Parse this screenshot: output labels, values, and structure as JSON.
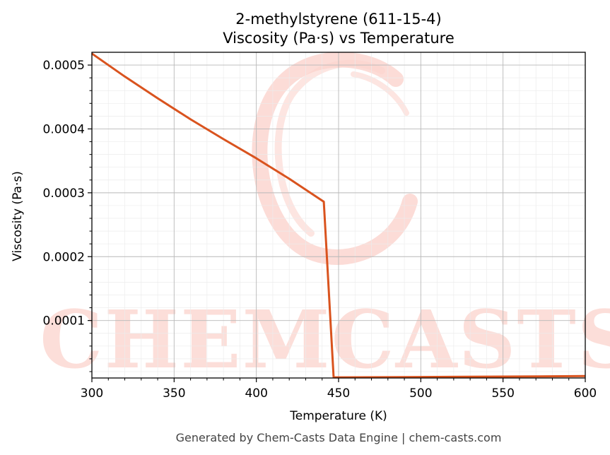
{
  "chart_data": {
    "type": "line",
    "title_line1": "2-methylstyrene (611-15-4)",
    "title_line2": "Viscosity (Pa·s) vs Temperature",
    "xlabel": "Temperature (K)",
    "ylabel": "Viscosity (Pa·s)",
    "xlim": [
      300,
      600
    ],
    "ylim": [
      1e-05,
      0.00052
    ],
    "x_ticks": [
      300,
      350,
      400,
      450,
      500,
      550,
      600
    ],
    "x_tick_labels": [
      "300",
      "350",
      "400",
      "450",
      "500",
      "550",
      "600"
    ],
    "y_ticks": [
      0.0001,
      0.0002,
      0.0003,
      0.0004,
      0.0005
    ],
    "y_tick_labels": [
      "0.0001",
      "0.0002",
      "0.0003",
      "0.0004",
      "0.0005"
    ],
    "grid": true,
    "line_color": "#d9531e",
    "series": [
      {
        "x": [
          300,
          320,
          340,
          360,
          380,
          400,
          420,
          441,
          447,
          500,
          550,
          600
        ],
        "y": [
          0.000518,
          0.000482,
          0.000448,
          0.000415,
          0.000384,
          0.000354,
          0.000322,
          0.000286,
          1.1e-05,
          1.15e-05,
          1.22e-05,
          1.3e-05
        ]
      }
    ]
  },
  "watermark": {
    "text": "CHEMCASTS",
    "color": "#fbd3cd"
  },
  "footer": "Generated by Chem-Casts Data Engine | chem-casts.com"
}
